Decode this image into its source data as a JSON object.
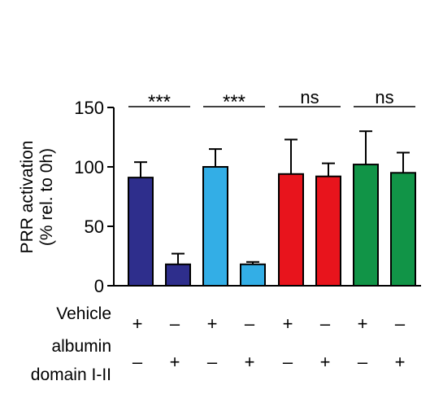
{
  "chart_data": {
    "type": "bar",
    "ylabel_line1": "PRR activation",
    "ylabel_line2": "(% rel. to 0h)",
    "ylim": [
      0,
      150
    ],
    "yticks": [
      0,
      50,
      100,
      150
    ],
    "bars": [
      {
        "value": 91,
        "error": 13,
        "color": "#2e2e8c"
      },
      {
        "value": 18,
        "error": 9,
        "color": "#2e2e8c"
      },
      {
        "value": 100,
        "error": 15,
        "color": "#33aee6"
      },
      {
        "value": 18,
        "error": 2,
        "color": "#33aee6"
      },
      {
        "value": 94,
        "error": 29,
        "color": "#e8141c"
      },
      {
        "value": 92,
        "error": 11,
        "color": "#e8141c"
      },
      {
        "value": 102,
        "error": 28,
        "color": "#119447"
      },
      {
        "value": 95,
        "error": 17,
        "color": "#119447"
      }
    ],
    "significance": [
      {
        "label": "***",
        "pair": [
          0,
          1
        ]
      },
      {
        "label": "***",
        "pair": [
          2,
          3
        ]
      },
      {
        "label": "ns",
        "pair": [
          4,
          5
        ]
      },
      {
        "label": "ns",
        "pair": [
          6,
          7
        ]
      }
    ],
    "conditions": [
      {
        "label": "Vehicle",
        "signs": [
          "+",
          "–",
          "+",
          "–",
          "+",
          "–",
          "+",
          "–"
        ]
      },
      {
        "label_line1": "albumin",
        "label_line2": "domain I-II",
        "signs": [
          "–",
          "+",
          "–",
          "+",
          "–",
          "+",
          "–",
          "+"
        ]
      }
    ]
  }
}
